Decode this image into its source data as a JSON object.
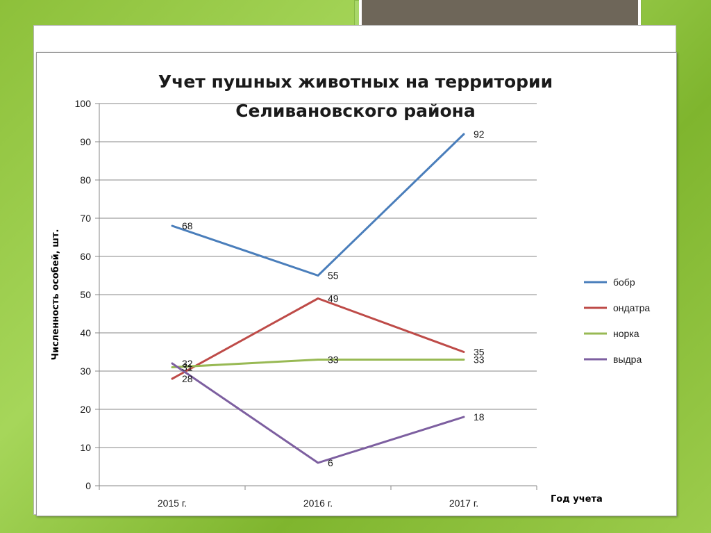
{
  "chart_data": {
    "type": "line",
    "title_lines": [
      "Учет пушных животных на территории",
      "Селивановского района"
    ],
    "xlabel": "Год учета",
    "ylabel": "Численность особей, шт.",
    "categories": [
      "2015 г.",
      "2016 г.",
      "2017 г."
    ],
    "ylim": [
      0,
      100
    ],
    "yticks": [
      0,
      10,
      20,
      30,
      40,
      50,
      60,
      70,
      80,
      90,
      100
    ],
    "grid": true,
    "legend_position": "right",
    "series": [
      {
        "name": "бобр",
        "color": "#4a7ebb",
        "values": [
          68,
          55,
          92
        ]
      },
      {
        "name": "ондатра",
        "color": "#be4b48",
        "values": [
          28,
          49,
          35
        ]
      },
      {
        "name": "норка",
        "color": "#98b954",
        "values": [
          31,
          33,
          33
        ]
      },
      {
        "name": "выдра",
        "color": "#7d5fa0",
        "values": [
          32,
          6,
          18
        ]
      }
    ]
  }
}
